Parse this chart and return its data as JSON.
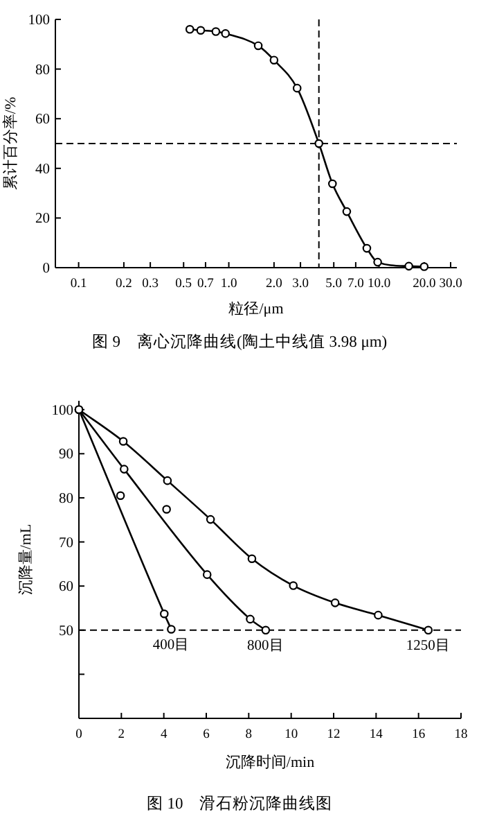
{
  "chart_data": [
    {
      "type": "line",
      "title": "图 9　离心沉降曲线(陶土中线值 3.98 μm)",
      "xlabel": "粒径/μm",
      "ylabel": "累计百分率/%",
      "log": "x",
      "xlim": [
        0.07,
        33
      ],
      "xticks": [
        0.1,
        0.2,
        0.3,
        0.5,
        0.7,
        {
          "value": 1,
          "label": "1.0"
        },
        {
          "value": 2,
          "label": "2.0"
        },
        {
          "value": 3,
          "label": "3.0"
        },
        {
          "value": 5,
          "label": "5.0"
        },
        {
          "value": 7,
          "label": "7.0"
        },
        {
          "value": 10,
          "label": "10.0"
        },
        {
          "value": 20,
          "label": "20.0"
        },
        {
          "value": 30,
          "label": "30.0"
        }
      ],
      "ylim": [
        0,
        100
      ],
      "yticks": [
        0,
        20,
        40,
        60,
        80,
        100
      ],
      "marker": "circle",
      "grid": false,
      "legend": false,
      "ref_lines": [
        {
          "axis": "y",
          "value": 50,
          "line_style": "dashed"
        },
        {
          "axis": "x",
          "value": 3.98,
          "line_style": "dashed"
        }
      ],
      "series": [
        {
          "color": "#000000",
          "x": [
            0.55,
            0.65,
            0.82,
            0.95,
            1.57,
            2.0,
            2.85,
            3.98,
            4.9,
            6.1,
            8.3,
            9.8,
            15.8,
            20
          ],
          "values": [
            96,
            95.6,
            95.1,
            94.3,
            89.4,
            83.6,
            72.3,
            50,
            33.8,
            22.6,
            7.8,
            2.2,
            0.6,
            0.4
          ]
        }
      ]
    },
    {
      "type": "line",
      "title": "图 10　滑石粉沉降曲线图",
      "xlabel": "沉降时间/min",
      "ylabel": "沉降量/mL",
      "xlim": [
        0,
        18
      ],
      "xticks": [
        0,
        2,
        4,
        6,
        8,
        10,
        12,
        14,
        16,
        18
      ],
      "ylim": [
        30,
        102
      ],
      "yticks": [
        {
          "value": 40,
          "label": null
        },
        50,
        60,
        70,
        80,
        90,
        100
      ],
      "marker": "circle",
      "grid": false,
      "legend": false,
      "ref_lines": [
        {
          "axis": "y",
          "value": 50,
          "line_style": "dashed"
        }
      ],
      "series": [
        {
          "name": "400目",
          "color": "#000000",
          "x": [
            0,
            4.02,
            4.35
          ],
          "values": [
            100,
            53.7,
            50.2
          ]
        },
        {
          "name": "800目",
          "color": "#000000",
          "x": [
            0,
            2.13,
            6.04,
            8.07,
            8.8
          ],
          "values": [
            100,
            86.5,
            62.6,
            52.5,
            50
          ]
        },
        {
          "name": "1250目",
          "color": "#000000",
          "x": [
            0,
            2.09,
            4.17,
            6.2,
            8.15,
            10.1,
            12.07,
            14.1,
            16.46
          ],
          "values": [
            100,
            92.8,
            83.9,
            75.1,
            66.2,
            60.1,
            56.2,
            53.4,
            50
          ]
        },
        {
          "type": "scatter",
          "color": "#000000",
          "x": [
            1.96,
            4.13
          ],
          "values": [
            80.5,
            77.4
          ]
        }
      ]
    }
  ]
}
